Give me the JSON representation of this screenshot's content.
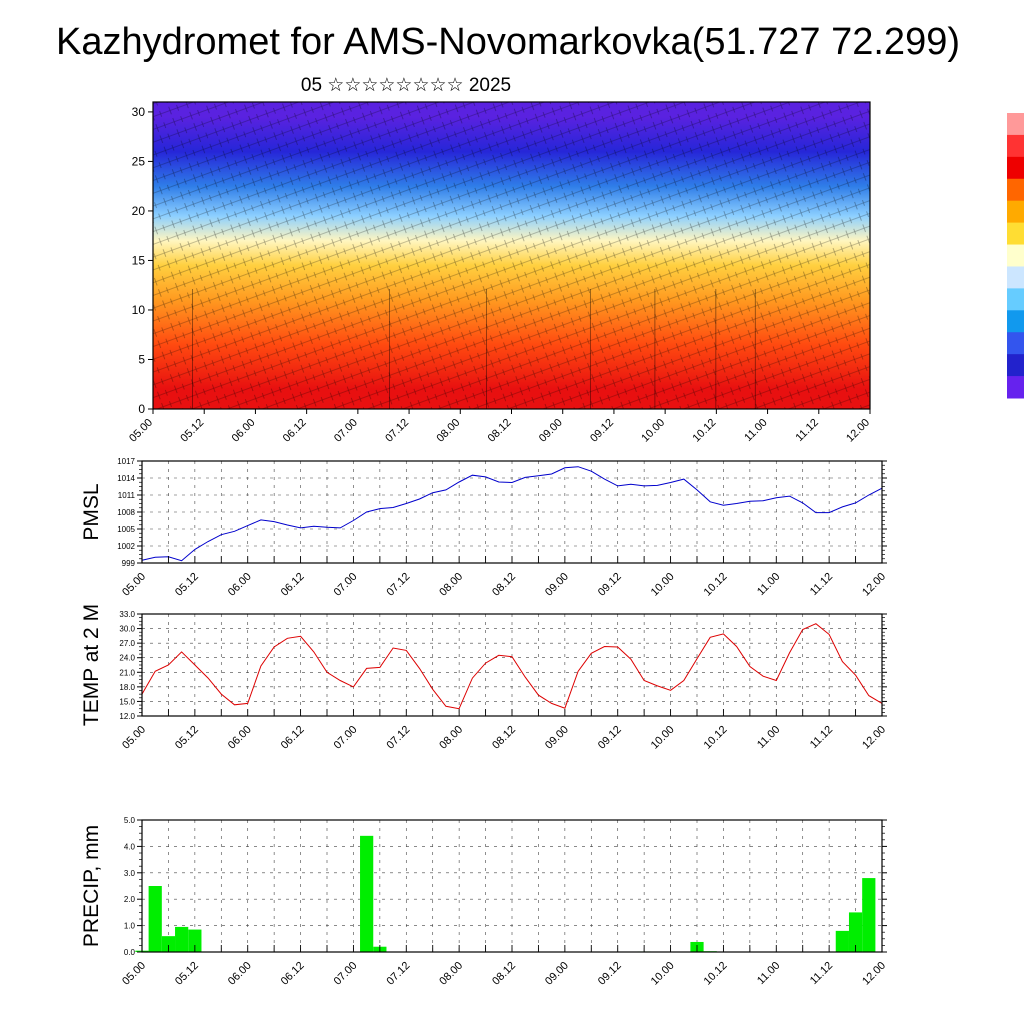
{
  "header": {
    "title": "Kazhydromet for AMS-Novomarkovka(51.727 72.299)",
    "subtitle": "05 ☆☆☆☆☆☆☆☆ 2025"
  },
  "colors": {
    "pmsl_line": "#0000cc",
    "temp_line": "#dd0000",
    "precip_bar": "#00ee00",
    "colorbar": [
      "#ff9999",
      "#ff3333",
      "#ee0000",
      "#ff6600",
      "#ffaa00",
      "#ffdd33",
      "#ffffcc",
      "#cce6ff",
      "#66ccff",
      "#1199ee",
      "#3355ee",
      "#2222cc",
      "#6622ee"
    ]
  },
  "chart_data": [
    {
      "type": "heatmap",
      "name": "cross-section",
      "y_ticks": [
        "0",
        "5",
        "10",
        "15",
        "20",
        "25",
        "30"
      ],
      "ylim": [
        0,
        31
      ],
      "x_ticks": [
        "05.00",
        "05.12",
        "06.00",
        "06.12",
        "07.00",
        "07.12",
        "08.00",
        "08.12",
        "09.00",
        "09.12",
        "10.00",
        "10.12",
        "11.00",
        "11.12",
        "12.00"
      ],
      "color_bands": [
        {
          "from": 0,
          "to": 4,
          "color": "#e81010"
        },
        {
          "from": 4,
          "to": 9,
          "color": "#ff4a10"
        },
        {
          "from": 9,
          "to": 13,
          "color": "#ff9a20"
        },
        {
          "from": 13,
          "to": 16,
          "color": "#ffd040"
        },
        {
          "from": 16,
          "to": 18,
          "color": "#fff6c0"
        },
        {
          "from": 18,
          "to": 21,
          "color": "#8ccfff"
        },
        {
          "from": 21,
          "to": 24,
          "color": "#2f7de8"
        },
        {
          "from": 24,
          "to": 28,
          "color": "#2626d8"
        },
        {
          "from": 28,
          "to": 31,
          "color": "#5a22e0"
        }
      ],
      "grid": false
    },
    {
      "type": "line",
      "ylabel": "PMSL",
      "y_ticks": [
        "999",
        "1002",
        "1005",
        "1008",
        "1011",
        "1014",
        "1017"
      ],
      "ylim": [
        999,
        1017
      ],
      "x_ticks": [
        "05.00",
        "05.12",
        "06.00",
        "06.12",
        "07.00",
        "07.12",
        "08.00",
        "08.12",
        "09.00",
        "09.12",
        "10.00",
        "10.12",
        "11.00",
        "11.12",
        "12.00"
      ],
      "x": [
        0,
        3,
        6,
        9,
        12,
        15,
        18,
        21,
        24,
        27,
        30,
        33,
        36,
        39,
        42,
        45,
        48,
        51,
        54,
        57,
        60,
        63,
        66,
        69,
        72,
        75,
        78,
        81,
        84,
        87,
        90,
        93,
        96,
        99,
        102,
        105,
        108,
        111,
        114,
        117,
        120,
        123,
        126,
        129,
        132,
        135,
        138,
        141,
        144,
        147,
        150,
        153,
        156,
        159,
        162,
        165,
        168
      ],
      "values": [
        999.5,
        1000.0,
        1000.1,
        999.4,
        1001.4,
        1002.8,
        1004.0,
        1004.6,
        1005.6,
        1006.6,
        1006.3,
        1005.7,
        1005.2,
        1005.5,
        1005.3,
        1005.2,
        1006.5,
        1008.0,
        1008.6,
        1008.8,
        1009.5,
        1010.3,
        1011.4,
        1011.9,
        1013.3,
        1014.5,
        1014.2,
        1013.3,
        1013.2,
        1014.1,
        1014.4,
        1014.7,
        1015.8,
        1016.0,
        1015.2,
        1013.8,
        1012.6,
        1012.9,
        1012.6,
        1012.7,
        1013.2,
        1013.8,
        1011.9,
        1009.8,
        1009.2,
        1009.5,
        1009.9,
        1010.0,
        1010.5,
        1010.8,
        1009.6,
        1007.9,
        1007.9,
        1008.9,
        1009.6,
        1011.0,
        1012.2
      ],
      "grid": true
    },
    {
      "type": "line",
      "ylabel": "TEMP at 2 M",
      "y_ticks": [
        "12.0",
        "15.0",
        "18.0",
        "21.0",
        "24.0",
        "27.0",
        "30.0",
        "33.0"
      ],
      "ylim": [
        12,
        33
      ],
      "x_ticks": [
        "05.00",
        "05.12",
        "06.00",
        "06.12",
        "07.00",
        "07.12",
        "08.00",
        "08.12",
        "09.00",
        "09.12",
        "10.00",
        "10.12",
        "11.00",
        "11.12",
        "12.00"
      ],
      "x": [
        0,
        3,
        6,
        9,
        12,
        15,
        18,
        21,
        24,
        27,
        30,
        33,
        36,
        39,
        42,
        45,
        48,
        51,
        54,
        57,
        60,
        63,
        66,
        69,
        72,
        75,
        78,
        81,
        84,
        87,
        90,
        93,
        96,
        99,
        102,
        105,
        108,
        111,
        114,
        117,
        120,
        123,
        126,
        129,
        132,
        135,
        138,
        141,
        144,
        147,
        150,
        153,
        156,
        159,
        162,
        165,
        168
      ],
      "values": [
        16.5,
        21.2,
        22.5,
        25.2,
        22.5,
        19.8,
        16.5,
        14.3,
        14.6,
        22.3,
        26.2,
        28.0,
        28.4,
        25.2,
        21.0,
        19.3,
        18.0,
        21.8,
        22.0,
        26.0,
        25.5,
        21.8,
        17.5,
        14.0,
        13.5,
        19.8,
        22.9,
        24.5,
        24.2,
        20.0,
        16.3,
        14.6,
        13.6,
        21.2,
        24.9,
        26.3,
        26.2,
        23.7,
        19.3,
        18.2,
        17.3,
        19.3,
        23.8,
        28.2,
        28.9,
        26.3,
        22.2,
        20.2,
        19.3,
        25.0,
        29.8,
        31.0,
        28.8,
        23.2,
        20.4,
        16.2,
        14.6
      ],
      "grid": true
    },
    {
      "type": "bar",
      "ylabel": "PRECIP, mm",
      "y_ticks": [
        "0.0",
        "1.0",
        "2.0",
        "3.0",
        "4.0",
        "5.0"
      ],
      "ylim": [
        0,
        5
      ],
      "x_ticks": [
        "05.00",
        "05.12",
        "06.00",
        "06.12",
        "07.00",
        "07.12",
        "08.00",
        "08.12",
        "09.00",
        "09.12",
        "10.00",
        "10.12",
        "11.00",
        "11.12",
        "12.00"
      ],
      "x": [
        0,
        3,
        6,
        9,
        12,
        15,
        18,
        21,
        24,
        27,
        30,
        33,
        36,
        39,
        42,
        45,
        48,
        51,
        54,
        57,
        60,
        63,
        66,
        69,
        72,
        75,
        78,
        81,
        84,
        87,
        90,
        93,
        96,
        99,
        102,
        105,
        108,
        111,
        114,
        117,
        120,
        123,
        126,
        129,
        132,
        135,
        138,
        141,
        144,
        147,
        150,
        153,
        156,
        159,
        162,
        165,
        168
      ],
      "values": [
        0.05,
        2.5,
        0.6,
        0.95,
        0.85,
        0,
        0,
        0,
        0,
        0,
        0,
        0,
        0,
        0,
        0,
        0,
        0,
        4.4,
        0.2,
        0,
        0,
        0,
        0,
        0,
        0,
        0,
        0,
        0,
        0,
        0,
        0,
        0,
        0,
        0,
        0,
        0,
        0,
        0,
        0.02,
        0,
        0,
        0,
        0.38,
        0.03,
        0,
        0,
        0,
        0,
        0,
        0,
        0,
        0,
        0,
        0.8,
        1.5,
        2.8,
        0
      ],
      "grid": true
    }
  ]
}
